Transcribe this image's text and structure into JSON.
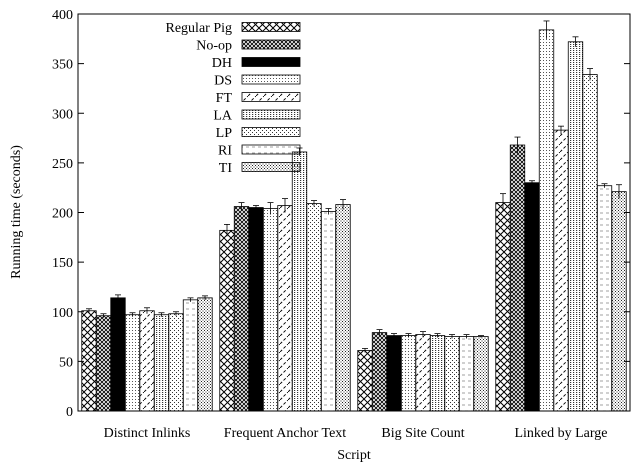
{
  "chart_data": {
    "type": "bar",
    "xlabel": "Script",
    "ylabel": "Running time (seconds)",
    "ylim": [
      0,
      400
    ],
    "yticks": [
      0,
      50,
      100,
      150,
      200,
      250,
      300,
      350,
      400
    ],
    "grid": false,
    "legend_position": "top-left",
    "error_bars": true,
    "categories": [
      "Distinct Inlinks",
      "Frequent Anchor Text",
      "Big Site Count",
      "Linked by Large"
    ],
    "series": [
      {
        "name": "Regular Pig",
        "pattern": "crosshatch",
        "values": [
          101,
          182,
          61,
          210
        ],
        "errors": [
          2,
          6,
          2,
          9
        ]
      },
      {
        "name": "No-op",
        "pattern": "dense-crosshatch",
        "values": [
          96,
          206,
          79,
          268
        ],
        "errors": [
          2,
          4,
          3,
          8
        ]
      },
      {
        "name": "DH",
        "pattern": "solid",
        "values": [
          114,
          205,
          76,
          230
        ],
        "errors": [
          3,
          2,
          2,
          2
        ]
      },
      {
        "name": "DS",
        "pattern": "dots",
        "values": [
          97,
          204,
          76,
          384
        ],
        "errors": [
          2,
          6,
          2,
          9
        ]
      },
      {
        "name": "FT",
        "pattern": "dashes",
        "values": [
          101,
          207,
          77,
          283
        ],
        "errors": [
          3,
          7,
          3,
          4
        ]
      },
      {
        "name": "LA",
        "pattern": "dots-dense",
        "values": [
          97,
          261,
          76,
          372
        ],
        "errors": [
          2,
          4,
          2,
          5
        ]
      },
      {
        "name": "LP",
        "pattern": "dots-sparse",
        "values": [
          98,
          209,
          75,
          339
        ],
        "errors": [
          2,
          3,
          2,
          6
        ]
      },
      {
        "name": "RI",
        "pattern": "hlines",
        "values": [
          112,
          201,
          75,
          227
        ],
        "errors": [
          2,
          3,
          2,
          2
        ]
      },
      {
        "name": "TI",
        "pattern": "dots-grid",
        "values": [
          114,
          208,
          75,
          221
        ],
        "errors": [
          2,
          5,
          1,
          7
        ]
      }
    ]
  }
}
